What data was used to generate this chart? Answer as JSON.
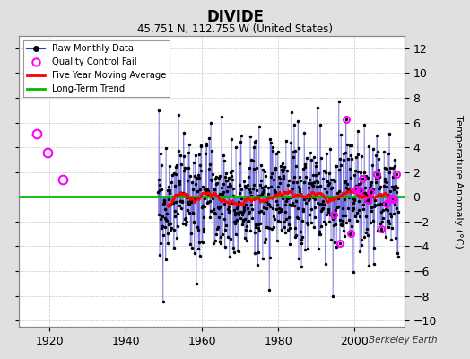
{
  "title": "DIVIDE",
  "subtitle": "45.751 N, 112.755 W (United States)",
  "ylabel": "Temperature Anomaly (°C)",
  "attribution": "Berkeley Earth",
  "xlim": [
    1912,
    2013
  ],
  "ylim": [
    -10.5,
    13
  ],
  "yticks": [
    -10,
    -8,
    -6,
    -4,
    -2,
    0,
    2,
    4,
    6,
    8,
    10,
    12
  ],
  "xticks": [
    1920,
    1940,
    1960,
    1980,
    2000
  ],
  "data_start_year": 1948.5,
  "data_end_year": 2011.5,
  "background_color": "#e0e0e0",
  "plot_bg_color": "#ffffff",
  "raw_line_color": "#3333cc",
  "raw_dot_color": "#000000",
  "qc_fail_color": "#ff00ff",
  "moving_avg_color": "#ff0000",
  "trend_color": "#00bb00",
  "seed": 77,
  "noise_std": 2.3,
  "moving_avg_window": 60,
  "qc_early_years": [
    1916.7,
    1919.5,
    1923.5
  ],
  "qc_early_vals": [
    5.1,
    3.6,
    1.4
  ],
  "trend_y": 0.05,
  "trend_xstart": 1912,
  "trend_xend": 2013
}
